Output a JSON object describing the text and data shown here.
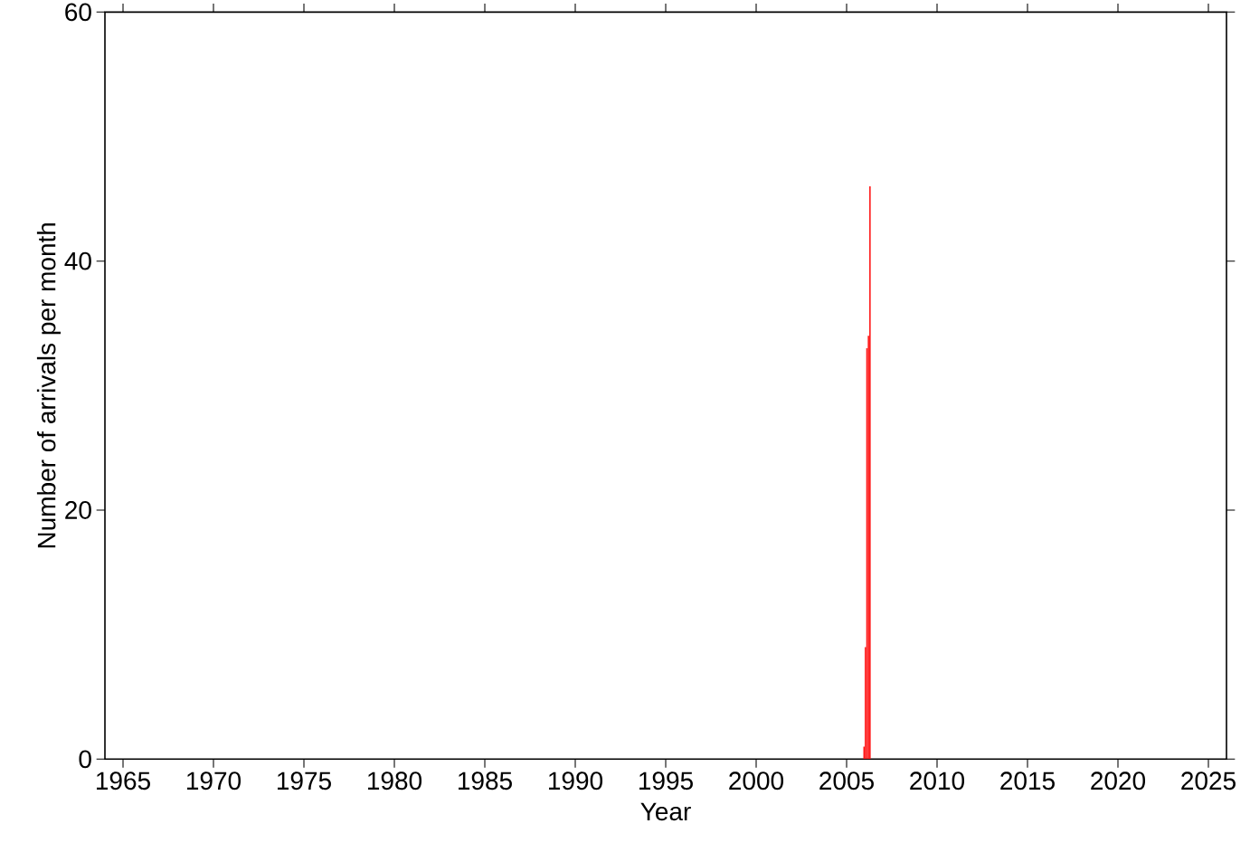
{
  "chart_data": {
    "type": "histogram",
    "xlabel": "Year",
    "ylabel": "Number of arrivals per month",
    "bins": [
      2005.917,
      2006.0,
      2006.083,
      2006.167,
      2006.25,
      2006.333
    ],
    "values": [
      1,
      9,
      33,
      34,
      46
    ],
    "color": "#ff2020",
    "xlim": [
      1964,
      2026
    ],
    "ylim": [
      0,
      60
    ],
    "xticks": [
      1965,
      1970,
      1975,
      1980,
      1985,
      1990,
      1995,
      2000,
      2005,
      2010,
      2015,
      2020,
      2025
    ],
    "yticks": [
      0,
      20,
      40,
      60
    ]
  }
}
